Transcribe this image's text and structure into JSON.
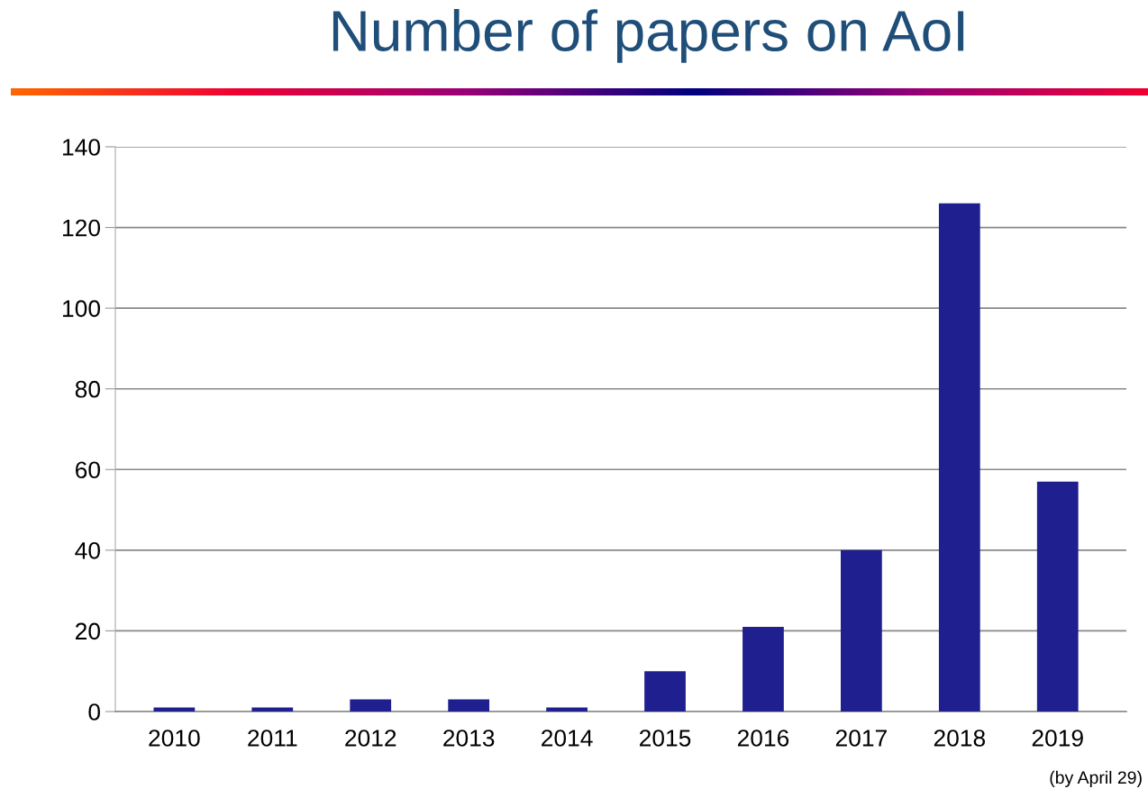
{
  "chart_data": {
    "type": "bar",
    "title": "Number of papers on AoI",
    "categories": [
      "2010",
      "2011",
      "2012",
      "2013",
      "2014",
      "2015",
      "2016",
      "2017",
      "2018",
      "2019"
    ],
    "values": [
      1,
      1,
      3,
      3,
      1,
      10,
      21,
      40,
      126,
      57
    ],
    "color": "#1f1f8f",
    "ylim": [
      0,
      140
    ],
    "yticks": [
      0,
      20,
      40,
      60,
      80,
      100,
      120,
      140
    ],
    "grid": "y",
    "annotations": [
      "(by April 29)"
    ]
  }
}
